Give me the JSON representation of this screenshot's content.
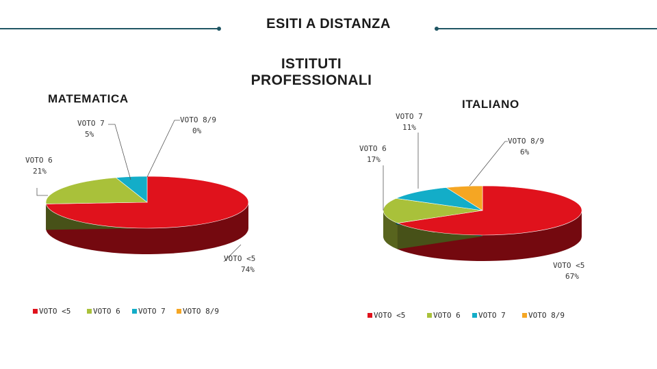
{
  "slide": {
    "title": "ESITI A DISTANZA",
    "subtitle": "ISTITUTI\nPROFESSIONALI"
  },
  "chart_data": [
    {
      "type": "pie",
      "title": "MATEMATICA",
      "three_d": true,
      "categories": [
        "VOTO <5",
        "VOTO 6",
        "VOTO 7",
        "VOTO 8/9"
      ],
      "values": [
        74,
        21,
        5,
        0
      ],
      "data_labels": [
        {
          "name": "VOTO <5",
          "value": "74%"
        },
        {
          "name": "VOTO 6",
          "value": "21%"
        },
        {
          "name": "VOTO 7",
          "value": "5%"
        },
        {
          "name": "VOTO 8/9",
          "value": "0%"
        }
      ],
      "colors": [
        "#e0121c",
        "#a9c13a",
        "#13adc8",
        "#f5a623"
      ],
      "legend": "bottom"
    },
    {
      "type": "pie",
      "title": "ITALIANO",
      "three_d": true,
      "categories": [
        "VOTO <5",
        "VOTO 6",
        "VOTO 7",
        "VOTO 8/9"
      ],
      "values": [
        67,
        17,
        11,
        6
      ],
      "data_labels": [
        {
          "name": "VOTO <5",
          "value": "67%"
        },
        {
          "name": "VOTO 6",
          "value": "17%"
        },
        {
          "name": "VOTO 7",
          "value": "11%"
        },
        {
          "name": "VOTO 8/9",
          "value": "6%"
        }
      ],
      "colors": [
        "#e0121c",
        "#a9c13a",
        "#13adc8",
        "#f5a623"
      ],
      "legend": "bottom"
    }
  ]
}
